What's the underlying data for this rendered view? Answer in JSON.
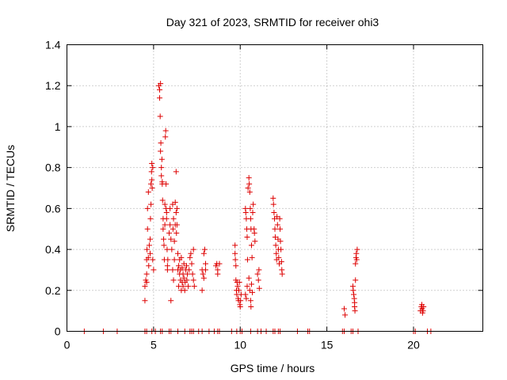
{
  "chart_data": {
    "type": "scatter",
    "title": "Day 321 of 2023, SRMTID for receiver ohi3",
    "xlabel": "GPS time / hours",
    "ylabel": "SRMTID / TECUs",
    "xlim": [
      0,
      24
    ],
    "ylim": [
      0,
      1.4
    ],
    "xticks": [
      0,
      5,
      10,
      15,
      20
    ],
    "xtick_labels": [
      "0",
      "5",
      "10",
      "15",
      "20"
    ],
    "yticks": [
      0,
      0.2,
      0.4,
      0.6,
      0.8,
      1.0,
      1.2,
      1.4
    ],
    "ytick_labels": [
      "0",
      "0.2",
      "0.4",
      "0.6",
      "0.8",
      "1",
      "1.2",
      "1.4"
    ],
    "grid": true,
    "marker": "plus",
    "color": "#dd0000",
    "series": [
      {
        "name": "ohi3",
        "points": [
          [
            1.0,
            0
          ],
          [
            2.1,
            0
          ],
          [
            2.9,
            0
          ],
          [
            4.5,
            0
          ],
          [
            4.6,
            0
          ],
          [
            4.9,
            0
          ],
          [
            5.1,
            0
          ],
          [
            5.4,
            0
          ],
          [
            5.5,
            0
          ],
          [
            5.9,
            0
          ],
          [
            6.0,
            0
          ],
          [
            6.4,
            0
          ],
          [
            6.8,
            0
          ],
          [
            7.1,
            0
          ],
          [
            7.2,
            0
          ],
          [
            7.3,
            0
          ],
          [
            7.6,
            0
          ],
          [
            7.8,
            0
          ],
          [
            8.2,
            0
          ],
          [
            8.5,
            0
          ],
          [
            8.7,
            0
          ],
          [
            8.8,
            0
          ],
          [
            9.5,
            0
          ],
          [
            9.8,
            0
          ],
          [
            10.0,
            0
          ],
          [
            10.1,
            0
          ],
          [
            10.6,
            0
          ],
          [
            11.0,
            0
          ],
          [
            11.2,
            0
          ],
          [
            11.5,
            0
          ],
          [
            11.9,
            0
          ],
          [
            12.0,
            0
          ],
          [
            12.2,
            0
          ],
          [
            12.3,
            0
          ],
          [
            13.3,
            0
          ],
          [
            13.9,
            0
          ],
          [
            14.0,
            0
          ],
          [
            15.9,
            0
          ],
          [
            16.0,
            0
          ],
          [
            16.4,
            0
          ],
          [
            16.5,
            0
          ],
          [
            16.8,
            0
          ],
          [
            20.0,
            0
          ],
          [
            20.1,
            0
          ],
          [
            20.8,
            0
          ],
          [
            21.0,
            0
          ],
          [
            4.5,
            0.15
          ],
          [
            4.5,
            0.22
          ],
          [
            4.55,
            0.25
          ],
          [
            4.6,
            0.24
          ],
          [
            4.6,
            0.28
          ],
          [
            4.6,
            0.35
          ],
          [
            4.62,
            0.4
          ],
          [
            4.65,
            0.5
          ],
          [
            4.65,
            0.6
          ],
          [
            4.7,
            0.68
          ],
          [
            4.7,
            0.36
          ],
          [
            4.72,
            0.32
          ],
          [
            4.75,
            0.42
          ],
          [
            4.8,
            0.38
          ],
          [
            4.8,
            0.45
          ],
          [
            4.82,
            0.55
          ],
          [
            4.85,
            0.62
          ],
          [
            4.85,
            0.72
          ],
          [
            4.88,
            0.78
          ],
          [
            4.9,
            0.82
          ],
          [
            4.9,
            0.74
          ],
          [
            4.92,
            0.7
          ],
          [
            4.95,
            0.8
          ],
          [
            4.95,
            0.35
          ],
          [
            5.0,
            0.3
          ],
          [
            5.3,
            1.2
          ],
          [
            5.35,
            1.18
          ],
          [
            5.35,
            1.14
          ],
          [
            5.4,
            1.21
          ],
          [
            5.38,
            1.05
          ],
          [
            5.4,
            0.88
          ],
          [
            5.42,
            0.92
          ],
          [
            5.45,
            0.8
          ],
          [
            5.45,
            0.76
          ],
          [
            5.48,
            0.84
          ],
          [
            5.5,
            0.73
          ],
          [
            5.5,
            0.72
          ],
          [
            5.52,
            0.64
          ],
          [
            5.55,
            0.55
          ],
          [
            5.55,
            0.5
          ],
          [
            5.58,
            0.45
          ],
          [
            5.6,
            0.42
          ],
          [
            5.62,
            0.35
          ],
          [
            5.65,
            0.62
          ],
          [
            5.65,
            0.52
          ],
          [
            5.68,
            0.95
          ],
          [
            5.7,
            0.98
          ],
          [
            5.72,
            0.72
          ],
          [
            5.72,
            0.6
          ],
          [
            5.75,
            0.58
          ],
          [
            5.75,
            0.55
          ],
          [
            5.78,
            0.4
          ],
          [
            5.8,
            0.32
          ],
          [
            5.8,
            0.3
          ],
          [
            5.82,
            0.35
          ],
          [
            5.9,
            0.48
          ],
          [
            5.95,
            0.52
          ],
          [
            5.95,
            0.6
          ],
          [
            6.0,
            0.45
          ],
          [
            6.0,
            0.15
          ],
          [
            6.05,
            0.4
          ],
          [
            6.1,
            0.3
          ],
          [
            6.1,
            0.62
          ],
          [
            6.12,
            0.5
          ],
          [
            6.15,
            0.55
          ],
          [
            6.15,
            0.25
          ],
          [
            6.2,
            0.35
          ],
          [
            6.2,
            0.44
          ],
          [
            6.25,
            0.52
          ],
          [
            6.25,
            0.63
          ],
          [
            6.3,
            0.78
          ],
          [
            6.3,
            0.58
          ],
          [
            6.32,
            0.48
          ],
          [
            6.35,
            0.6
          ],
          [
            6.35,
            0.52
          ],
          [
            6.4,
            0.38
          ],
          [
            6.4,
            0.3
          ],
          [
            6.45,
            0.32
          ],
          [
            6.45,
            0.22
          ],
          [
            6.5,
            0.28
          ],
          [
            6.5,
            0.35
          ],
          [
            6.55,
            0.25
          ],
          [
            6.55,
            0.3
          ],
          [
            6.6,
            0.36
          ],
          [
            6.6,
            0.2
          ],
          [
            6.65,
            0.24
          ],
          [
            6.65,
            0.31
          ],
          [
            6.7,
            0.28
          ],
          [
            6.7,
            0.22
          ],
          [
            6.75,
            0.26
          ],
          [
            6.75,
            0.33
          ],
          [
            6.8,
            0.2
          ],
          [
            6.82,
            0.24
          ],
          [
            6.85,
            0.3
          ],
          [
            6.9,
            0.32
          ],
          [
            6.92,
            0.25
          ],
          [
            6.95,
            0.28
          ],
          [
            7.0,
            0.22
          ],
          [
            7.05,
            0.3
          ],
          [
            7.1,
            0.36
          ],
          [
            7.15,
            0.38
          ],
          [
            7.2,
            0.33
          ],
          [
            7.25,
            0.28
          ],
          [
            7.3,
            0.4
          ],
          [
            7.3,
            0.25
          ],
          [
            7.35,
            0.22
          ],
          [
            7.8,
            0.2
          ],
          [
            7.8,
            0.3
          ],
          [
            7.85,
            0.28
          ],
          [
            7.9,
            0.38
          ],
          [
            7.9,
            0.26
          ],
          [
            7.95,
            0.4
          ],
          [
            8.0,
            0.33
          ],
          [
            8.0,
            0.3
          ],
          [
            8.6,
            0.32
          ],
          [
            8.65,
            0.33
          ],
          [
            8.7,
            0.3
          ],
          [
            8.7,
            0.28
          ],
          [
            8.8,
            0.33
          ],
          [
            9.7,
            0.42
          ],
          [
            9.7,
            0.38
          ],
          [
            9.72,
            0.35
          ],
          [
            9.75,
            0.32
          ],
          [
            9.75,
            0.25
          ],
          [
            9.78,
            0.2
          ],
          [
            9.8,
            0.18
          ],
          [
            9.82,
            0.24
          ],
          [
            9.85,
            0.22
          ],
          [
            9.88,
            0.16
          ],
          [
            9.9,
            0.15
          ],
          [
            9.92,
            0.2
          ],
          [
            9.95,
            0.24
          ],
          [
            9.98,
            0.13
          ],
          [
            10.0,
            0.12
          ],
          [
            10.02,
            0.15
          ],
          [
            10.05,
            0.18
          ],
          [
            10.3,
            0.6
          ],
          [
            10.32,
            0.58
          ],
          [
            10.35,
            0.55
          ],
          [
            10.38,
            0.5
          ],
          [
            10.4,
            0.46
          ],
          [
            10.42,
            0.35
          ],
          [
            10.45,
            0.7
          ],
          [
            10.5,
            0.75
          ],
          [
            10.52,
            0.72
          ],
          [
            10.55,
            0.68
          ],
          [
            10.58,
            0.6
          ],
          [
            10.6,
            0.55
          ],
          [
            10.62,
            0.5
          ],
          [
            10.65,
            0.42
          ],
          [
            10.68,
            0.36
          ],
          [
            10.3,
            0.18
          ],
          [
            10.35,
            0.16
          ],
          [
            10.4,
            0.22
          ],
          [
            10.5,
            0.26
          ],
          [
            10.55,
            0.2
          ],
          [
            10.6,
            0.15
          ],
          [
            10.62,
            0.12
          ],
          [
            10.65,
            0.23
          ],
          [
            10.7,
            0.19
          ],
          [
            10.72,
            0.58
          ],
          [
            10.75,
            0.62
          ],
          [
            10.8,
            0.5
          ],
          [
            10.82,
            0.48
          ],
          [
            10.85,
            0.44
          ],
          [
            11.0,
            0.28
          ],
          [
            11.05,
            0.25
          ],
          [
            11.08,
            0.3
          ],
          [
            11.1,
            0.21
          ],
          [
            11.9,
            0.65
          ],
          [
            11.92,
            0.62
          ],
          [
            11.95,
            0.58
          ],
          [
            11.98,
            0.55
          ],
          [
            12.0,
            0.5
          ],
          [
            12.02,
            0.46
          ],
          [
            12.05,
            0.42
          ],
          [
            12.08,
            0.38
          ],
          [
            12.1,
            0.35
          ],
          [
            12.12,
            0.56
          ],
          [
            12.15,
            0.52
          ],
          [
            12.18,
            0.45
          ],
          [
            12.2,
            0.4
          ],
          [
            12.22,
            0.36
          ],
          [
            12.25,
            0.33
          ],
          [
            12.28,
            0.55
          ],
          [
            12.3,
            0.5
          ],
          [
            12.32,
            0.44
          ],
          [
            12.35,
            0.4
          ],
          [
            12.38,
            0.34
          ],
          [
            12.4,
            0.3
          ],
          [
            12.42,
            0.28
          ],
          [
            16.0,
            0.11
          ],
          [
            16.05,
            0.08
          ],
          [
            16.5,
            0.22
          ],
          [
            16.52,
            0.2
          ],
          [
            16.55,
            0.18
          ],
          [
            16.58,
            0.16
          ],
          [
            16.6,
            0.14
          ],
          [
            16.6,
            0.12
          ],
          [
            16.62,
            0.1
          ],
          [
            16.65,
            0.25
          ],
          [
            16.65,
            0.33
          ],
          [
            16.68,
            0.36
          ],
          [
            16.7,
            0.38
          ],
          [
            16.72,
            0.35
          ],
          [
            16.75,
            0.4
          ],
          [
            20.4,
            0.1
          ],
          [
            20.45,
            0.12
          ],
          [
            20.48,
            0.13
          ],
          [
            20.5,
            0.11
          ],
          [
            20.52,
            0.09
          ],
          [
            20.55,
            0.1
          ],
          [
            20.58,
            0.12
          ]
        ]
      }
    ]
  }
}
